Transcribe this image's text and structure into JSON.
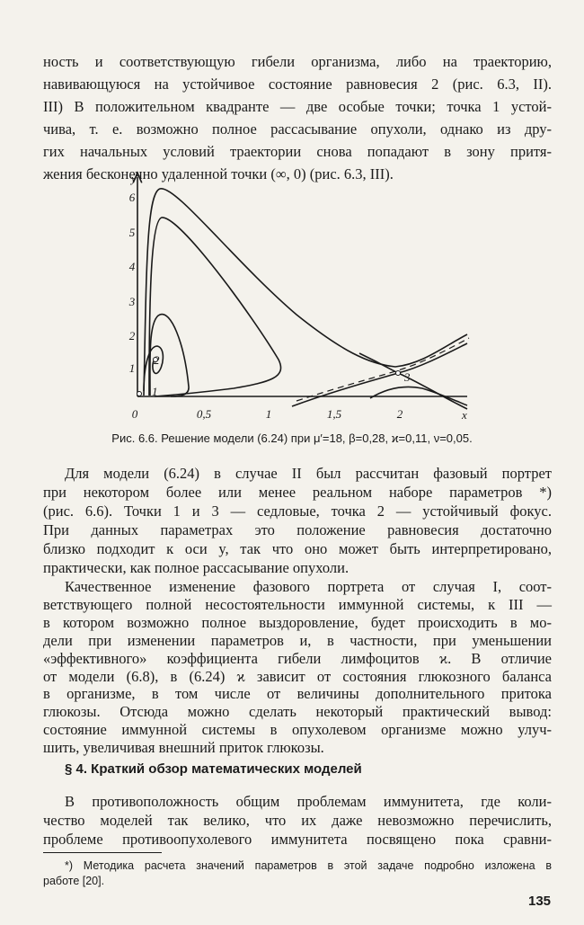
{
  "paragraphs": [
    {
      "lines": [
        "ность и соответствующую гибели организма, либо на траекторию,",
        "навивающуюся на устойчивое состояние равновесия 2 (рис. 6.3, II).",
        "III) В положительном квадранте — две особые точки; точка 1 устой-",
        "чива, т. е. возможно полное рассасывание опухоли, однако из дру-",
        "гих начальных условий траектории снова попадают в зону притя-",
        "жения бесконечно удаленной точки (∞, 0) (рис. 6.3, III)."
      ]
    },
    {
      "lines": [
        "Для модели (6.24) в случае II был рассчитан фазовый портрет",
        "при некотором более или менее реальном наборе параметров *)",
        "(рис. 6.6). Точки 1 и 3 — седловые, точка 2 — устойчивый фокус.",
        "При данных параметрах это положение равновесия достаточно",
        "близко подходит к оси y, так что оно может быть интерпретировано,",
        "практически, как полное рассасывание опухоли."
      ]
    },
    {
      "lines": [
        "Качественное изменение фазового портрета от случая I, соот-",
        "ветствующего полной несостоятельности иммунной системы, к III —",
        "в котором возможно полное выздоровление, будет происходить в мо-",
        "дели при изменении параметров и, в частности, при уменьшении",
        "«эффективного» коэффициента гибели лимфоцитов ϰ. В отличие",
        "от модели (6.8), в (6.24) ϰ зависит от состояния глюкозного баланса",
        "в организме, в том числе от величины дополнительного притока",
        "глюкозы. Отсюда можно сделать некоторый практический вывод:",
        "состояние иммунной системы в опухолевом организме можно улуч-",
        "шить, увеличивая внешний приток глюкозы."
      ]
    },
    {
      "lines": [
        "В противоположность общим проблемам иммунитета, где коли-",
        "чество моделей так велико, что их даже невозможно перечислить,",
        "проблеме противоопухолевого иммунитета посвящено пока сравни-"
      ]
    }
  ],
  "figure": {
    "y_axis_label": "y",
    "x_axis_label": "x",
    "x_ticks": [
      "0",
      "0,5",
      "1",
      "1,5",
      "2"
    ],
    "y_ticks": [
      "1",
      "2",
      "3",
      "4",
      "5",
      "6"
    ],
    "point_labels": [
      "1",
      "2",
      "3"
    ],
    "caption": "Рис. 6.6. Решение модели (6.24) при μ′=18, β=0,28, ϰ=0,11, ν=0,05."
  },
  "heading": "§ 4. Краткий обзор математических моделей",
  "footnote": {
    "lines": [
      "*) Методика расчета значений параметров в этой задаче подробно изложена в",
      "работе [20]."
    ]
  },
  "page_number": "135"
}
